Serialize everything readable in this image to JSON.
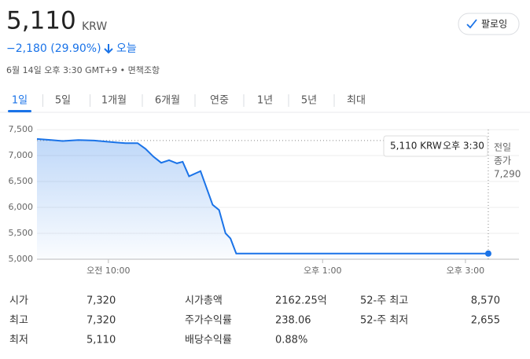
{
  "header": {
    "price": "5,110",
    "currency": "KRW",
    "change": "−2,180 (29.90%)",
    "change_period": "오늘",
    "timestamp": "6월 14일 오후 3:30 GMT+9 • 면책조항",
    "follow": "팔로잉"
  },
  "tabs": [
    "1일",
    "5일",
    "1개월",
    "6개월",
    "연중",
    "1년",
    "5년",
    "최대"
  ],
  "chart_data": {
    "type": "line",
    "x": [
      9.0,
      9.2,
      9.36,
      9.58,
      9.8,
      9.97,
      10.13,
      10.24,
      10.41,
      10.52,
      10.63,
      10.74,
      10.85,
      10.96,
      11.04,
      11.13,
      11.29,
      11.46,
      11.55,
      11.64,
      11.71,
      11.79,
      15.32
    ],
    "values": [
      7320,
      7300,
      7280,
      7300,
      7290,
      7270,
      7250,
      7240,
      7240,
      7130,
      6980,
      6860,
      6910,
      6850,
      6880,
      6600,
      6700,
      6050,
      5950,
      5500,
      5400,
      5110,
      5110
    ],
    "color": "#1a73e8",
    "xlim": [
      9.0,
      15.75
    ],
    "xticks": [
      {
        "value": 10,
        "label": "오전 10:00"
      },
      {
        "value": 13,
        "label": "오후 1:00"
      },
      {
        "value": 15,
        "label": "오후 3:00"
      }
    ],
    "ylim": [
      5000,
      7500
    ],
    "yticks": [
      {
        "value": 5000,
        "label": "5,000"
      },
      {
        "value": 5500,
        "label": "5,500"
      },
      {
        "value": 6000,
        "label": "6,000"
      },
      {
        "value": 6500,
        "label": "6,500"
      },
      {
        "value": 7000,
        "label": "7,000"
      },
      {
        "value": 7500,
        "label": "7,500"
      }
    ],
    "grid": true,
    "previous_close": {
      "label_lines": [
        "전일",
        "종가"
      ],
      "value": 7290,
      "value_label": "7,290"
    },
    "tooltip": {
      "price": "5,110 KRW",
      "time": "오후 3:30"
    }
  },
  "stats": [
    [
      [
        "시가",
        "7,320"
      ],
      [
        "시가총액",
        "2162.25억"
      ],
      [
        "52-주 최고",
        "8,570"
      ]
    ],
    [
      [
        "최고",
        "7,320"
      ],
      [
        "주가수익률",
        "238.06"
      ],
      [
        "52-주 최저",
        "2,655"
      ]
    ],
    [
      [
        "최저",
        "5,110"
      ],
      [
        "배당수익률",
        "0.88%"
      ]
    ]
  ]
}
